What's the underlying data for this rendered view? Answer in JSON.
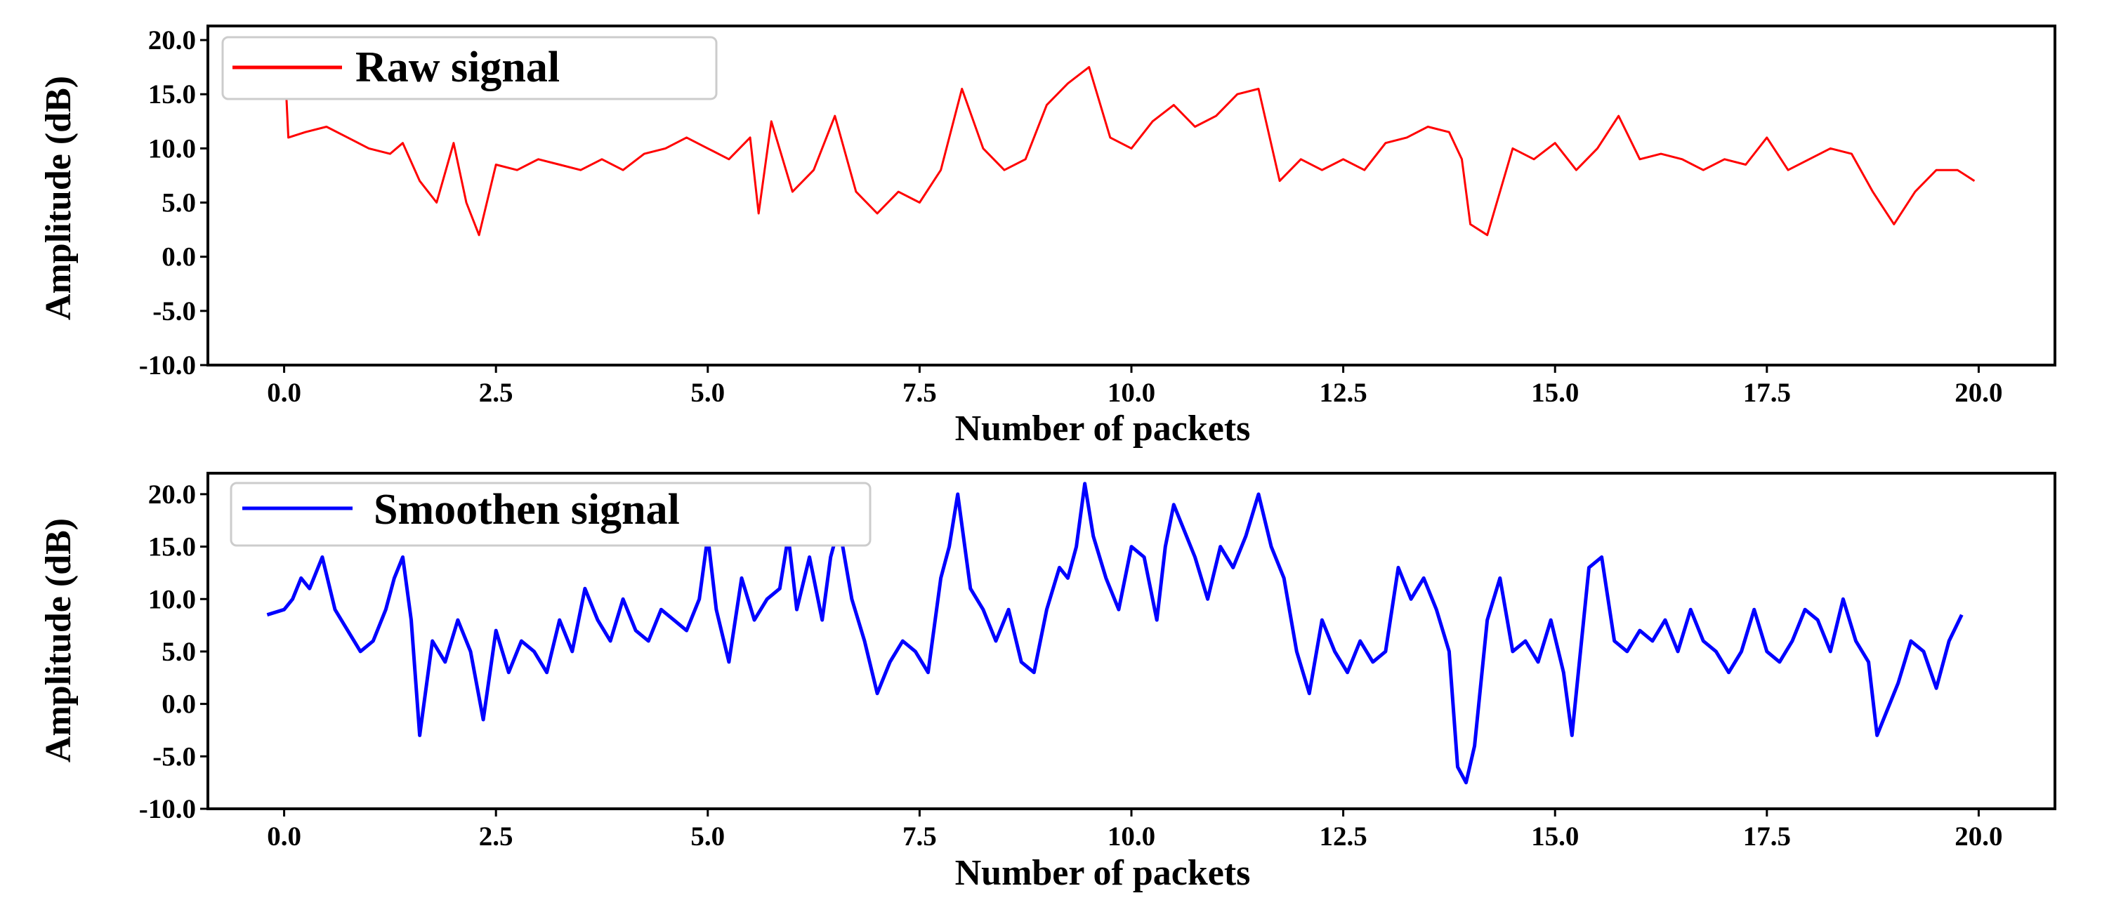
{
  "chart_data": [
    {
      "type": "line",
      "xlabel": "Number of packets",
      "ylabel": "Amplitude (dB)",
      "xlim": [
        -0.9,
        20.9
      ],
      "ylim": [
        -10.0,
        21.3
      ],
      "xticks": [
        0.0,
        2.5,
        5.0,
        7.5,
        10.0,
        12.5,
        15.0,
        17.5,
        20.0
      ],
      "xtick_labels": [
        "0.0",
        "2.5",
        "5.0",
        "7.5",
        "10.0",
        "12.5",
        "15.0",
        "17.5",
        "20.0"
      ],
      "yticks": [
        -10.0,
        -5.0,
        0.0,
        5.0,
        10.0,
        15.0,
        20.0
      ],
      "ytick_labels": [
        "-10.0",
        "-5.0",
        "0.0",
        "5.0",
        "10.0",
        "15.0",
        "20.0"
      ],
      "grid": false,
      "legend": "top-left",
      "series": [
        {
          "name": "Raw signal",
          "color": "#ff0000",
          "x": [
            0.0,
            0.05,
            0.25,
            0.5,
            0.75,
            1.0,
            1.25,
            1.4,
            1.6,
            1.8,
            2.0,
            2.15,
            2.3,
            2.5,
            2.75,
            3.0,
            3.25,
            3.5,
            3.75,
            4.0,
            4.25,
            4.5,
            4.75,
            5.0,
            5.25,
            5.5,
            5.6,
            5.75,
            6.0,
            6.25,
            6.5,
            6.75,
            7.0,
            7.25,
            7.5,
            7.75,
            8.0,
            8.25,
            8.5,
            8.75,
            9.0,
            9.25,
            9.5,
            9.75,
            10.0,
            10.25,
            10.5,
            10.75,
            11.0,
            11.25,
            11.5,
            11.75,
            12.0,
            12.25,
            12.5,
            12.75,
            13.0,
            13.25,
            13.5,
            13.75,
            13.9,
            14.0,
            14.2,
            14.5,
            14.75,
            15.0,
            15.25,
            15.5,
            15.75,
            16.0,
            16.25,
            16.5,
            16.75,
            17.0,
            17.25,
            17.5,
            17.75,
            18.0,
            18.25,
            18.5,
            18.75,
            19.0,
            19.25,
            19.5,
            19.75,
            19.95
          ],
          "y": [
            19.0,
            11.0,
            11.5,
            12.0,
            11.0,
            10.0,
            9.5,
            10.5,
            7.0,
            5.0,
            10.5,
            5.0,
            2.0,
            8.5,
            8.0,
            9.0,
            8.5,
            8.0,
            9.0,
            8.0,
            9.5,
            10.0,
            11.0,
            10.0,
            9.0,
            11.0,
            4.0,
            12.5,
            6.0,
            8.0,
            13.0,
            6.0,
            4.0,
            6.0,
            5.0,
            8.0,
            15.5,
            10.0,
            8.0,
            9.0,
            14.0,
            16.0,
            17.5,
            11.0,
            10.0,
            12.5,
            14.0,
            12.0,
            13.0,
            15.0,
            15.5,
            7.0,
            9.0,
            8.0,
            9.0,
            8.0,
            10.5,
            11.0,
            12.0,
            11.5,
            9.0,
            3.0,
            2.0,
            10.0,
            9.0,
            10.5,
            8.0,
            10.0,
            13.0,
            9.0,
            9.5,
            9.0,
            8.0,
            9.0,
            8.5,
            11.0,
            8.0,
            9.0,
            10.0,
            9.5,
            6.0,
            3.0,
            6.0,
            8.0,
            8.0,
            7.0
          ]
        }
      ]
    },
    {
      "type": "line",
      "xlabel": "Number of packets",
      "ylabel": "Amplitude (dB)",
      "xlim": [
        -0.9,
        20.9
      ],
      "ylim": [
        -10.0,
        22.0
      ],
      "xticks": [
        0.0,
        2.5,
        5.0,
        7.5,
        10.0,
        12.5,
        15.0,
        17.5,
        20.0
      ],
      "xtick_labels": [
        "0.0",
        "2.5",
        "5.0",
        "7.5",
        "10.0",
        "12.5",
        "15.0",
        "17.5",
        "20.0"
      ],
      "yticks": [
        -10.0,
        -5.0,
        0.0,
        5.0,
        10.0,
        15.0,
        20.0
      ],
      "ytick_labels": [
        "-10.0",
        "-5.0",
        "0.0",
        "5.0",
        "10.0",
        "15.0",
        "20.0"
      ],
      "grid": false,
      "legend": "top-left",
      "series": [
        {
          "name": "Smoothen signal",
          "color": "#0000ff",
          "x": [
            -0.2,
            0.0,
            0.1,
            0.2,
            0.3,
            0.45,
            0.6,
            0.75,
            0.9,
            1.05,
            1.2,
            1.3,
            1.4,
            1.5,
            1.6,
            1.75,
            1.9,
            2.05,
            2.2,
            2.35,
            2.5,
            2.65,
            2.8,
            2.95,
            3.1,
            3.25,
            3.4,
            3.55,
            3.7,
            3.85,
            4.0,
            4.15,
            4.3,
            4.45,
            4.6,
            4.75,
            4.9,
            5.0,
            5.1,
            5.25,
            5.4,
            5.55,
            5.7,
            5.85,
            5.95,
            6.05,
            6.2,
            6.35,
            6.45,
            6.55,
            6.7,
            6.85,
            7.0,
            7.15,
            7.3,
            7.45,
            7.6,
            7.75,
            7.85,
            7.95,
            8.1,
            8.25,
            8.4,
            8.55,
            8.7,
            8.85,
            9.0,
            9.15,
            9.25,
            9.35,
            9.45,
            9.55,
            9.7,
            9.85,
            10.0,
            10.15,
            10.3,
            10.4,
            10.5,
            10.6,
            10.75,
            10.9,
            11.05,
            11.2,
            11.35,
            11.5,
            11.65,
            11.8,
            11.95,
            12.1,
            12.25,
            12.4,
            12.55,
            12.7,
            12.85,
            13.0,
            13.15,
            13.3,
            13.45,
            13.6,
            13.75,
            13.85,
            13.95,
            14.05,
            14.2,
            14.35,
            14.5,
            14.65,
            14.8,
            14.95,
            15.1,
            15.2,
            15.3,
            15.4,
            15.55,
            15.7,
            15.85,
            16.0,
            16.15,
            16.3,
            16.45,
            16.6,
            16.75,
            16.9,
            17.05,
            17.2,
            17.35,
            17.5,
            17.65,
            17.8,
            17.95,
            18.1,
            18.25,
            18.4,
            18.55,
            18.7,
            18.8,
            18.9,
            19.05,
            19.2,
            19.35,
            19.5,
            19.65,
            19.8
          ],
          "y": [
            8.5,
            9.0,
            10.0,
            12.0,
            11.0,
            14.0,
            9.0,
            7.0,
            5.0,
            6.0,
            9.0,
            12.0,
            14.0,
            8.0,
            -3.0,
            6.0,
            4.0,
            8.0,
            5.0,
            -1.5,
            7.0,
            3.0,
            6.0,
            5.0,
            3.0,
            8.0,
            5.0,
            11.0,
            8.0,
            6.0,
            10.0,
            7.0,
            6.0,
            9.0,
            8.0,
            7.0,
            10.0,
            16.0,
            9.0,
            4.0,
            12.0,
            8.0,
            10.0,
            11.0,
            16.0,
            9.0,
            14.0,
            8.0,
            14.0,
            17.0,
            10.0,
            6.0,
            1.0,
            4.0,
            6.0,
            5.0,
            3.0,
            12.0,
            15.0,
            20.0,
            11.0,
            9.0,
            6.0,
            9.0,
            4.0,
            3.0,
            9.0,
            13.0,
            12.0,
            15.0,
            21.0,
            16.0,
            12.0,
            9.0,
            15.0,
            14.0,
            8.0,
            15.0,
            19.0,
            17.0,
            14.0,
            10.0,
            15.0,
            13.0,
            16.0,
            20.0,
            15.0,
            12.0,
            5.0,
            1.0,
            8.0,
            5.0,
            3.0,
            6.0,
            4.0,
            5.0,
            13.0,
            10.0,
            12.0,
            9.0,
            5.0,
            -6.0,
            -7.5,
            -4.0,
            8.0,
            12.0,
            5.0,
            6.0,
            4.0,
            8.0,
            3.0,
            -3.0,
            5.0,
            13.0,
            14.0,
            6.0,
            5.0,
            7.0,
            6.0,
            8.0,
            5.0,
            9.0,
            6.0,
            5.0,
            3.0,
            5.0,
            9.0,
            5.0,
            4.0,
            6.0,
            9.0,
            8.0,
            5.0,
            10.0,
            6.0,
            4.0,
            -3.0,
            -1.0,
            2.0,
            6.0,
            5.0,
            1.5,
            6.0,
            8.5
          ]
        }
      ]
    }
  ]
}
